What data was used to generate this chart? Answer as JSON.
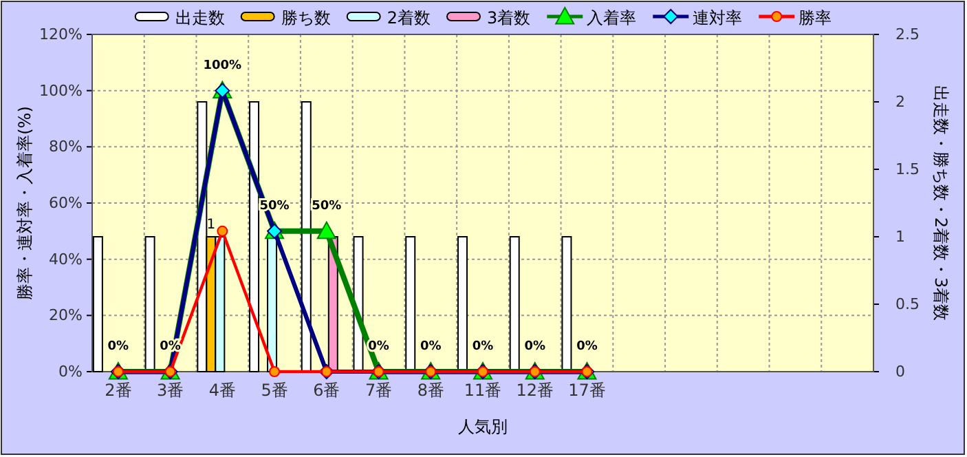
{
  "chart_data": {
    "type": "bar",
    "xlabel": "人気別",
    "ylabel": "勝率・連対率・入着率(%)",
    "y2label": "出走数・勝ち数・2着数・3着数",
    "categories": [
      "2番",
      "3番",
      "4番",
      "5番",
      "6番",
      "7番",
      "8番",
      "11番",
      "12番",
      "17番",
      null,
      null,
      null,
      null,
      null
    ],
    "series": [
      {
        "name": "出走数",
        "type": "bar",
        "axis": "y2",
        "color": "#ffffff",
        "values": [
          1,
          1,
          2,
          2,
          2,
          1,
          1,
          1,
          1,
          1,
          null,
          null,
          null,
          null,
          null
        ]
      },
      {
        "name": "勝ち数",
        "type": "bar",
        "axis": "y2",
        "color": "#ffc000",
        "values": [
          0,
          0,
          1,
          0,
          0,
          0,
          0,
          0,
          0,
          0,
          null,
          null,
          null,
          null,
          null
        ],
        "value_labels": [
          null,
          null,
          "1",
          null,
          null,
          null,
          null,
          null,
          null,
          null,
          null,
          null,
          null,
          null,
          null
        ]
      },
      {
        "name": "2着数",
        "type": "bar",
        "axis": "y2",
        "color": "#ccffff",
        "values": [
          0,
          0,
          1,
          1,
          0,
          0,
          0,
          0,
          0,
          0,
          null,
          null,
          null,
          null,
          null
        ]
      },
      {
        "name": "3着数",
        "type": "bar",
        "axis": "y2",
        "color": "#ff99cc",
        "values": [
          0,
          0,
          0,
          0,
          1,
          0,
          0,
          0,
          0,
          0,
          null,
          null,
          null,
          null,
          null
        ]
      },
      {
        "name": "入着率",
        "type": "line",
        "color": "#008000",
        "marker": "triangle",
        "values": [
          0,
          0,
          100,
          50,
          50,
          0,
          0,
          0,
          0,
          0,
          null,
          null,
          null,
          null,
          null
        ],
        "value_labels": [
          "0%",
          "0%",
          "100%",
          "50%",
          "50%",
          "0%",
          "0%",
          "0%",
          "0%",
          "0%",
          null,
          null,
          null,
          null,
          null
        ]
      },
      {
        "name": "連対率",
        "type": "line",
        "color": "#000080",
        "marker": "diamond",
        "values": [
          0,
          0,
          100,
          50,
          0,
          0,
          0,
          0,
          0,
          0,
          null,
          null,
          null,
          null,
          null
        ]
      },
      {
        "name": "勝率",
        "type": "line",
        "color": "#ff0000",
        "marker": "circle",
        "values": [
          0,
          0,
          50,
          0,
          0,
          0,
          0,
          0,
          0,
          0,
          null,
          null,
          null,
          null,
          null
        ]
      }
    ],
    "ylim": [
      0,
      120
    ],
    "yticks": [
      {
        "value": 0,
        "label": "0%"
      },
      {
        "value": 20,
        "label": "20%"
      },
      {
        "value": 40,
        "label": "40%"
      },
      {
        "value": 60,
        "label": "60%"
      },
      {
        "value": 80,
        "label": "80%"
      },
      {
        "value": 100,
        "label": "100%"
      },
      {
        "value": 120,
        "label": "120%"
      }
    ],
    "y2lim": [
      0,
      2.5
    ],
    "y2ticks": [
      0,
      0.5,
      1,
      1.5,
      2,
      2.5
    ],
    "grid": true,
    "legend": "top"
  }
}
